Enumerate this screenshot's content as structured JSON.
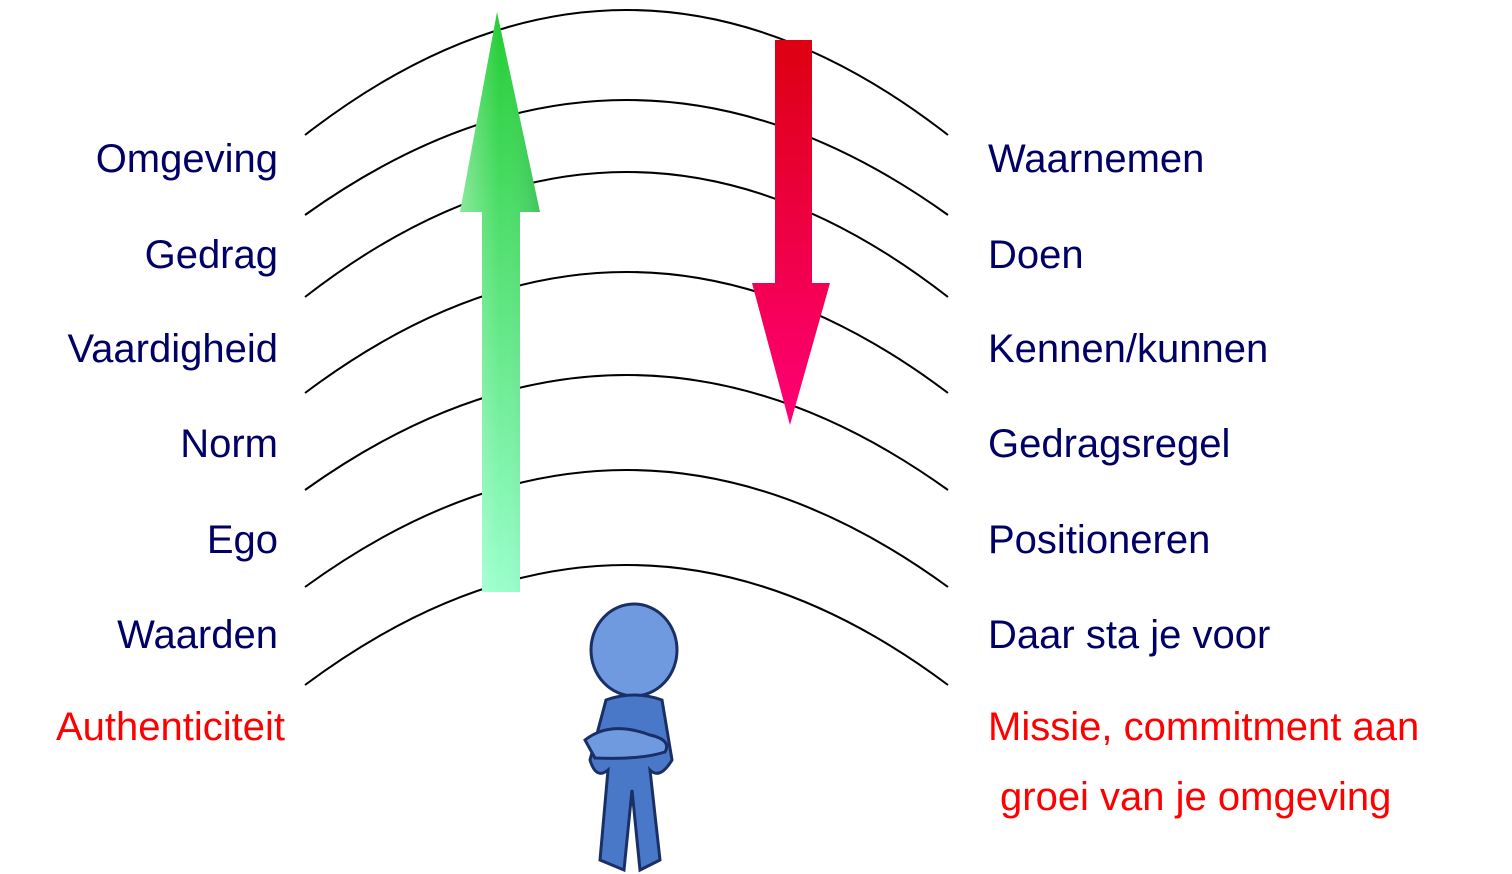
{
  "left_levels": [
    "Omgeving",
    "Gedrag",
    "Vaardigheid",
    "Norm",
    "Ego",
    "Waarden"
  ],
  "left_core": "Authenticiteit",
  "right_levels": [
    "Waarnemen",
    "Doen",
    "Kennen/kunnen",
    "Gedragsregel",
    "Positioneren",
    "Daar sta je voor"
  ],
  "right_core": [
    "Missie, commitment aan",
    "groei van je omgeving"
  ]
}
